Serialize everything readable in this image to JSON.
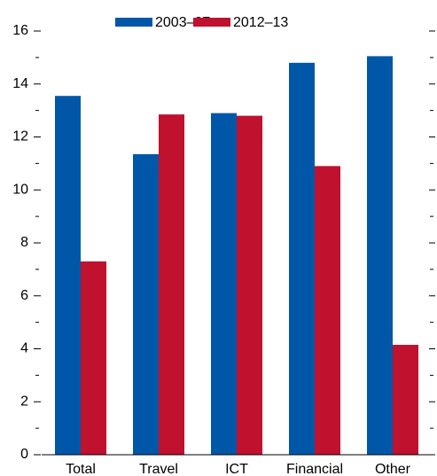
{
  "chart_data": {
    "type": "bar",
    "categories": [
      "Total",
      "Travel",
      "ICT",
      "Financial",
      "Other"
    ],
    "series": [
      {
        "name": "2003–07",
        "color": "#0057a8",
        "values": [
          13.55,
          11.35,
          12.9,
          14.8,
          15.05
        ]
      },
      {
        "name": "2012–13",
        "color": "#c0112e",
        "values": [
          7.3,
          12.85,
          12.8,
          10.9,
          4.15
        ]
      }
    ],
    "ylim": [
      0,
      16
    ],
    "yticks": [
      0,
      2,
      4,
      6,
      8,
      10,
      12,
      14,
      16
    ],
    "minor_yticks": [
      1,
      3,
      5,
      7,
      9,
      11,
      13,
      15
    ],
    "grid": false
  }
}
